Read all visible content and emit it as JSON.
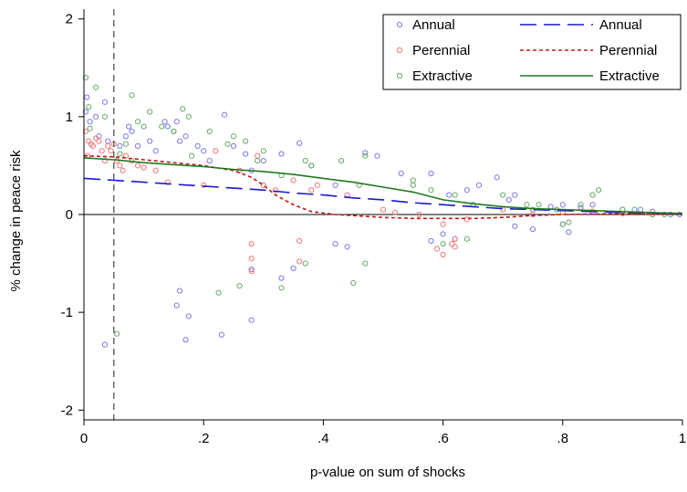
{
  "chart_data": {
    "type": "scatter",
    "xlabel": "p-value on sum of shocks",
    "ylabel": "% change in peace risk",
    "xlim": [
      0,
      1
    ],
    "ylim": [
      -2.1,
      2.1
    ],
    "x_ticks": [
      0,
      0.2,
      0.4,
      0.6,
      0.8,
      1
    ],
    "x_tick_labels": [
      "0",
      ".2",
      ".4",
      ".6",
      ".8",
      "1"
    ],
    "y_ticks": [
      -2,
      -1,
      0,
      1,
      2
    ],
    "y_tick_labels": [
      "-2",
      "-1",
      "0",
      "1",
      "2"
    ],
    "reference_lines": [
      {
        "axis": "x",
        "value": 0.05,
        "style": "dashed"
      },
      {
        "axis": "y",
        "value": 0,
        "style": "solid"
      }
    ],
    "grid": false,
    "legend": {
      "position": "top-right",
      "columns": 2
    },
    "scatter_series": [
      {
        "name": "Annual",
        "marker": "hollow-circle",
        "color": "#7a7ae6",
        "points": [
          [
            0.003,
            1.05
          ],
          [
            0.005,
            1.2
          ],
          [
            0.01,
            0.95
          ],
          [
            0.02,
            1.0
          ],
          [
            0.025,
            0.8
          ],
          [
            0.035,
            1.15
          ],
          [
            0.04,
            0.75
          ],
          [
            0.06,
            0.7
          ],
          [
            0.07,
            0.8
          ],
          [
            0.075,
            0.9
          ],
          [
            0.08,
            0.85
          ],
          [
            0.09,
            0.7
          ],
          [
            0.11,
            0.75
          ],
          [
            0.12,
            0.65
          ],
          [
            0.135,
            0.95
          ],
          [
            0.14,
            0.9
          ],
          [
            0.15,
            0.85
          ],
          [
            0.155,
            0.95
          ],
          [
            0.16,
            0.75
          ],
          [
            0.17,
            0.8
          ],
          [
            0.19,
            0.7
          ],
          [
            0.2,
            0.65
          ],
          [
            0.21,
            0.55
          ],
          [
            0.235,
            1.02
          ],
          [
            0.25,
            0.7
          ],
          [
            0.27,
            0.62
          ],
          [
            0.28,
            0.45
          ],
          [
            0.3,
            0.55
          ],
          [
            0.33,
            0.62
          ],
          [
            0.36,
            0.73
          ],
          [
            0.38,
            0.5
          ],
          [
            0.42,
            0.3
          ],
          [
            0.47,
            0.63
          ],
          [
            0.49,
            0.6
          ],
          [
            0.53,
            0.42
          ],
          [
            0.58,
            0.42
          ],
          [
            0.61,
            0.2
          ],
          [
            0.64,
            0.25
          ],
          [
            0.66,
            0.3
          ],
          [
            0.69,
            0.38
          ],
          [
            0.71,
            0.15
          ],
          [
            0.72,
            0.2
          ],
          [
            0.75,
            0.05
          ],
          [
            0.78,
            0.08
          ],
          [
            0.8,
            0.1
          ],
          [
            0.83,
            0.07
          ],
          [
            0.85,
            0.1
          ],
          [
            0.9,
            0.05
          ],
          [
            0.93,
            0.05
          ],
          [
            0.95,
            0.03
          ],
          [
            0.98,
            0.0
          ],
          [
            0.995,
            0.0
          ],
          [
            0.035,
            -1.33
          ],
          [
            0.155,
            -0.93
          ],
          [
            0.16,
            -0.78
          ],
          [
            0.17,
            -1.28
          ],
          [
            0.175,
            -1.04
          ],
          [
            0.23,
            -1.23
          ],
          [
            0.28,
            -1.08
          ],
          [
            0.28,
            -0.56
          ],
          [
            0.33,
            -0.65
          ],
          [
            0.35,
            -0.55
          ],
          [
            0.42,
            -0.3
          ],
          [
            0.44,
            -0.33
          ],
          [
            0.58,
            -0.27
          ],
          [
            0.6,
            -0.2
          ],
          [
            0.62,
            -0.25
          ],
          [
            0.72,
            -0.12
          ],
          [
            0.75,
            -0.15
          ],
          [
            0.8,
            -0.1
          ],
          [
            0.81,
            -0.18
          ]
        ]
      },
      {
        "name": "Perennial",
        "marker": "hollow-circle",
        "color": "#ee7777",
        "points": [
          [
            0.003,
            0.85
          ],
          [
            0.006,
            0.6
          ],
          [
            0.008,
            0.75
          ],
          [
            0.012,
            0.72
          ],
          [
            0.015,
            0.7
          ],
          [
            0.02,
            0.78
          ],
          [
            0.025,
            0.75
          ],
          [
            0.03,
            0.65
          ],
          [
            0.035,
            0.55
          ],
          [
            0.04,
            0.7
          ],
          [
            0.045,
            0.65
          ],
          [
            0.05,
            0.72
          ],
          [
            0.055,
            0.55
          ],
          [
            0.06,
            0.5
          ],
          [
            0.065,
            0.45
          ],
          [
            0.07,
            0.6
          ],
          [
            0.08,
            0.55
          ],
          [
            0.09,
            0.5
          ],
          [
            0.1,
            0.48
          ],
          [
            0.12,
            0.45
          ],
          [
            0.14,
            0.33
          ],
          [
            0.2,
            0.3
          ],
          [
            0.22,
            0.65
          ],
          [
            0.26,
            0.45
          ],
          [
            0.29,
            0.6
          ],
          [
            0.3,
            0.3
          ],
          [
            0.32,
            0.25
          ],
          [
            0.35,
            0.35
          ],
          [
            0.38,
            0.25
          ],
          [
            0.39,
            0.3
          ],
          [
            0.44,
            0.2
          ],
          [
            0.5,
            0.05
          ],
          [
            0.52,
            0.02
          ],
          [
            0.56,
            0.0
          ],
          [
            0.6,
            -0.1
          ],
          [
            0.64,
            -0.05
          ],
          [
            0.7,
            0.05
          ],
          [
            0.75,
            0.0
          ],
          [
            0.8,
            0.02
          ],
          [
            0.85,
            0.03
          ],
          [
            0.9,
            0.01
          ],
          [
            0.95,
            0.0
          ],
          [
            0.28,
            -0.3
          ],
          [
            0.28,
            -0.45
          ],
          [
            0.28,
            -0.58
          ],
          [
            0.36,
            -0.27
          ],
          [
            0.36,
            -0.48
          ],
          [
            0.59,
            -0.35
          ],
          [
            0.6,
            -0.41
          ],
          [
            0.615,
            -0.3
          ],
          [
            0.62,
            -0.25
          ],
          [
            0.62,
            -0.33
          ]
        ]
      },
      {
        "name": "Extractive",
        "marker": "hollow-circle",
        "color": "#66aa66",
        "points": [
          [
            0.003,
            1.4
          ],
          [
            0.008,
            1.1
          ],
          [
            0.01,
            0.88
          ],
          [
            0.02,
            1.3
          ],
          [
            0.035,
            1.0
          ],
          [
            0.06,
            0.62
          ],
          [
            0.07,
            0.72
          ],
          [
            0.08,
            1.22
          ],
          [
            0.09,
            0.95
          ],
          [
            0.1,
            0.9
          ],
          [
            0.11,
            1.05
          ],
          [
            0.13,
            0.9
          ],
          [
            0.15,
            0.85
          ],
          [
            0.165,
            1.08
          ],
          [
            0.175,
            1.0
          ],
          [
            0.18,
            0.6
          ],
          [
            0.21,
            0.85
          ],
          [
            0.24,
            0.72
          ],
          [
            0.25,
            0.8
          ],
          [
            0.27,
            0.75
          ],
          [
            0.29,
            0.55
          ],
          [
            0.3,
            0.65
          ],
          [
            0.33,
            0.4
          ],
          [
            0.37,
            0.55
          ],
          [
            0.38,
            0.5
          ],
          [
            0.43,
            0.55
          ],
          [
            0.46,
            0.3
          ],
          [
            0.47,
            0.6
          ],
          [
            0.55,
            0.3
          ],
          [
            0.55,
            0.35
          ],
          [
            0.58,
            0.25
          ],
          [
            0.62,
            0.2
          ],
          [
            0.65,
            0.1
          ],
          [
            0.7,
            0.2
          ],
          [
            0.74,
            0.1
          ],
          [
            0.76,
            0.1
          ],
          [
            0.79,
            0.05
          ],
          [
            0.83,
            0.1
          ],
          [
            0.85,
            0.2
          ],
          [
            0.86,
            0.25
          ],
          [
            0.9,
            0.05
          ],
          [
            0.92,
            0.05
          ],
          [
            0.95,
            0.0
          ],
          [
            0.97,
            0.0
          ],
          [
            0.055,
            -1.22
          ],
          [
            0.225,
            -0.8
          ],
          [
            0.26,
            -0.73
          ],
          [
            0.33,
            -0.75
          ],
          [
            0.37,
            -0.5
          ],
          [
            0.45,
            -0.7
          ],
          [
            0.47,
            -0.5
          ],
          [
            0.6,
            -0.3
          ],
          [
            0.64,
            -0.25
          ],
          [
            0.8,
            -0.1
          ],
          [
            0.81,
            -0.08
          ]
        ]
      }
    ],
    "line_series": [
      {
        "name": "Annual",
        "style": "long-dash",
        "color": "#1a1acc",
        "points": [
          [
            0.0,
            0.37
          ],
          [
            0.05,
            0.35
          ],
          [
            0.1,
            0.33
          ],
          [
            0.15,
            0.31
          ],
          [
            0.2,
            0.29
          ],
          [
            0.25,
            0.27
          ],
          [
            0.3,
            0.25
          ],
          [
            0.35,
            0.22
          ],
          [
            0.4,
            0.2
          ],
          [
            0.45,
            0.17
          ],
          [
            0.5,
            0.15
          ],
          [
            0.55,
            0.12
          ],
          [
            0.6,
            0.1
          ],
          [
            0.65,
            0.08
          ],
          [
            0.7,
            0.06
          ],
          [
            0.75,
            0.05
          ],
          [
            0.8,
            0.04
          ],
          [
            0.85,
            0.03
          ],
          [
            0.9,
            0.02
          ],
          [
            0.95,
            0.01
          ],
          [
            1.0,
            0.0
          ]
        ]
      },
      {
        "name": "Perennial",
        "style": "short-dash",
        "color": "#c01818",
        "points": [
          [
            0.0,
            0.6
          ],
          [
            0.05,
            0.59
          ],
          [
            0.1,
            0.56
          ],
          [
            0.15,
            0.53
          ],
          [
            0.2,
            0.5
          ],
          [
            0.25,
            0.45
          ],
          [
            0.28,
            0.38
          ],
          [
            0.3,
            0.3
          ],
          [
            0.32,
            0.2
          ],
          [
            0.35,
            0.1
          ],
          [
            0.38,
            0.03
          ],
          [
            0.42,
            0.0
          ],
          [
            0.5,
            -0.03
          ],
          [
            0.55,
            -0.04
          ],
          [
            0.6,
            -0.04
          ],
          [
            0.65,
            -0.04
          ],
          [
            0.7,
            -0.03
          ],
          [
            0.75,
            -0.01
          ],
          [
            0.8,
            0.0
          ],
          [
            0.9,
            0.01
          ],
          [
            1.0,
            0.0
          ]
        ]
      },
      {
        "name": "Extractive",
        "style": "solid",
        "color": "#1f7a1f",
        "points": [
          [
            0.0,
            0.58
          ],
          [
            0.05,
            0.56
          ],
          [
            0.1,
            0.53
          ],
          [
            0.15,
            0.51
          ],
          [
            0.2,
            0.49
          ],
          [
            0.25,
            0.46
          ],
          [
            0.3,
            0.44
          ],
          [
            0.35,
            0.41
          ],
          [
            0.4,
            0.37
          ],
          [
            0.45,
            0.33
          ],
          [
            0.5,
            0.28
          ],
          [
            0.55,
            0.23
          ],
          [
            0.6,
            0.15
          ],
          [
            0.65,
            0.11
          ],
          [
            0.7,
            0.08
          ],
          [
            0.75,
            0.06
          ],
          [
            0.8,
            0.05
          ],
          [
            0.85,
            0.04
          ],
          [
            0.9,
            0.03
          ],
          [
            0.95,
            0.02
          ],
          [
            1.0,
            0.01
          ]
        ]
      }
    ]
  }
}
